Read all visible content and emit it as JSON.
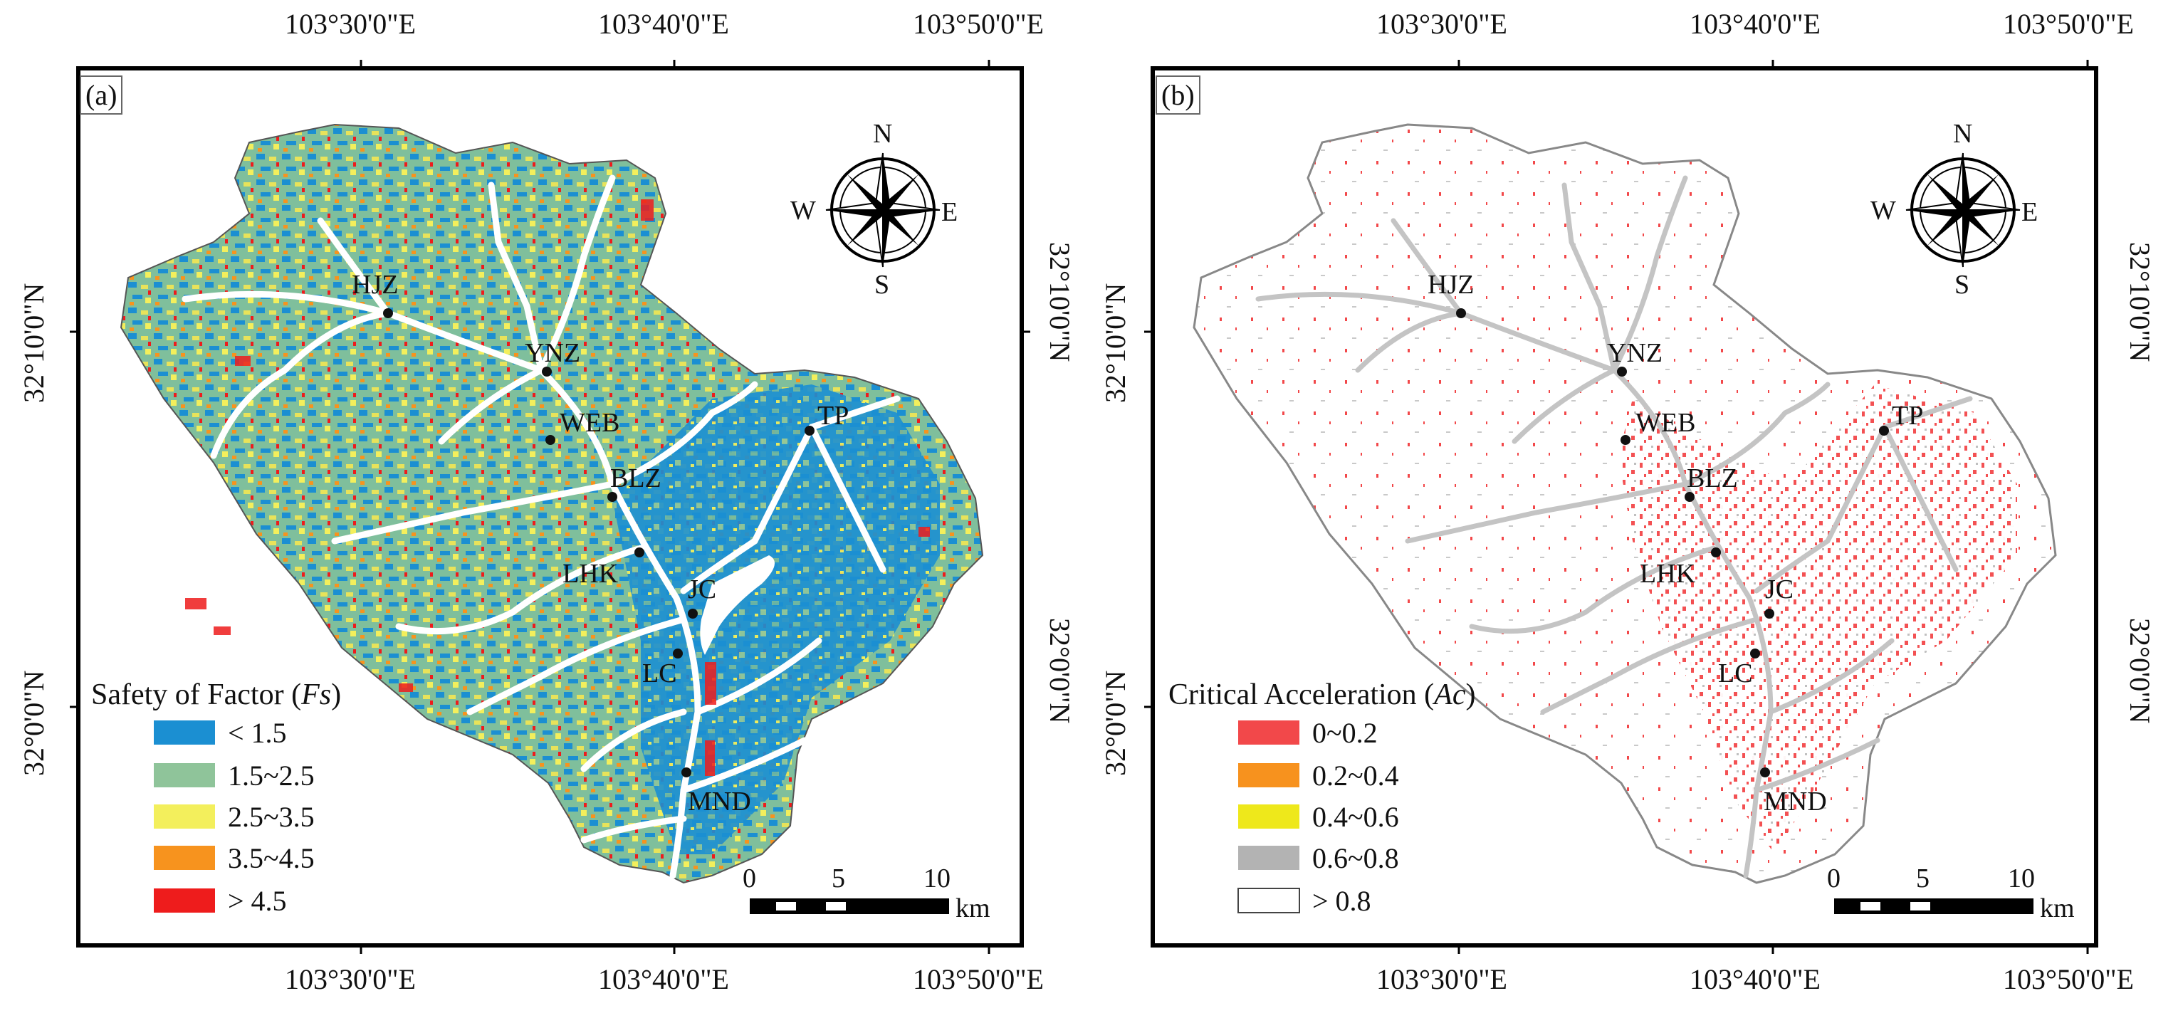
{
  "panels": [
    {
      "tag": "(a)",
      "legend_title_prefix": "Safety of Factor (",
      "legend_title_var": "Fs",
      "legend_title_suffix": ")",
      "legend": [
        {
          "label": "< 1.5",
          "color": "#1b8fd2"
        },
        {
          "label": "1.5~2.5",
          "color": "#8fc49a"
        },
        {
          "label": "2.5~3.5",
          "color": "#f3ef5c"
        },
        {
          "label": "3.5~4.5",
          "color": "#f7931e"
        },
        {
          "label": "> 4.5",
          "color": "#ee1c1c"
        }
      ],
      "lon_top": [
        "103°30'0\"E",
        "103°40'0\"E",
        "103°50'0\"E"
      ],
      "lon_bottom": [
        "103°30'0\"E",
        "103°40'0\"E",
        "103°50'0\"E"
      ],
      "lat_left": [
        "32°10'0\"N",
        "32°0'0\"N"
      ],
      "lat_right": [
        "32°10'0\"N",
        "32°0'0\"N"
      ],
      "sites": [
        "HJZ",
        "YNZ",
        "WEB",
        "BLZ",
        "TP",
        "LHK",
        "JC",
        "LC",
        "MND"
      ],
      "compass": {
        "N": "N",
        "S": "S",
        "E": "E",
        "W": "W"
      },
      "scale": {
        "ticks": [
          "0",
          "5",
          "10"
        ],
        "unit": "km"
      }
    },
    {
      "tag": "(b)",
      "legend_title_prefix": "Critical Acceleration (",
      "legend_title_var": "Ac",
      "legend_title_suffix": ")",
      "legend": [
        {
          "label": "0~0.2",
          "color": "#f2484a"
        },
        {
          "label": "0.2~0.4",
          "color": "#f7921e"
        },
        {
          "label": "0.4~0.6",
          "color": "#eee81b"
        },
        {
          "label": "0.6~0.8",
          "color": "#b3b3b3"
        },
        {
          "label": "> 0.8",
          "color": "#ffffff"
        }
      ],
      "lon_top": [
        "103°30'0\"E",
        "103°40'0\"E",
        "103°50'0\"E"
      ],
      "lon_bottom": [
        "103°30'0\"E",
        "103°40'0\"E",
        "103°50'0\"E"
      ],
      "lat_left": [
        "32°10'0\"N",
        "32°0'0\"N"
      ],
      "lat_right": [
        "32°10'0\"N",
        "32°0'0\"N"
      ],
      "sites": [
        "HJZ",
        "YNZ",
        "WEB",
        "BLZ",
        "TP",
        "LHK",
        "JC",
        "LC",
        "MND"
      ],
      "compass": {
        "N": "N",
        "S": "S",
        "E": "E",
        "W": "W"
      },
      "scale": {
        "ticks": [
          "0",
          "5",
          "10"
        ],
        "unit": "km"
      }
    }
  ]
}
